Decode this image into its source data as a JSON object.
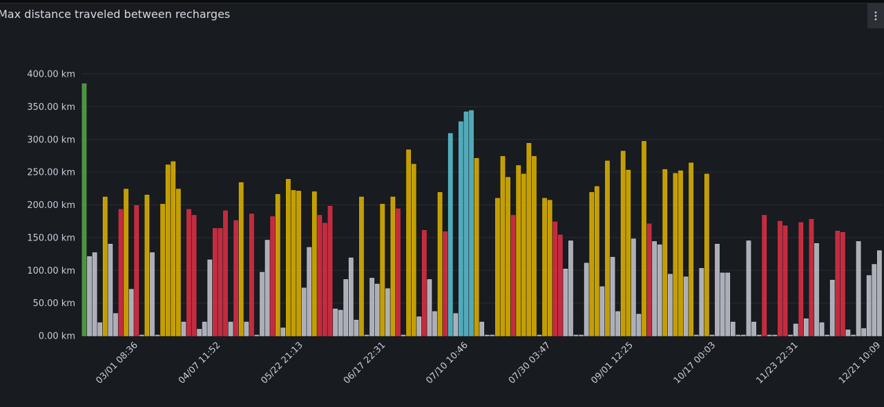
{
  "panel": {
    "title": "Max distance traveled between recharges",
    "menu_icon": "more-vertical-icon"
  },
  "chart_data": {
    "type": "bar",
    "title": "Max distance traveled between recharges",
    "xlabel": "",
    "ylabel": "",
    "unit": "km",
    "ylim": [
      0,
      400
    ],
    "y_ticks": [
      "0.00 km",
      "50.00 km",
      "100.00 km",
      "150.00 km",
      "200.00 km",
      "250.00 km",
      "300.00 km",
      "350.00 km",
      "400.00 km"
    ],
    "x_tick_labels": [
      "03/01 08:36",
      "04/07 11:52",
      "05/22 21:13",
      "06/17 22:31",
      "07/10 10:46",
      "07/30 03:47",
      "09/01 12:25",
      "10/17 00:03",
      "11/23 22:31",
      "12/21 10:09"
    ],
    "grid": true,
    "legend": "none",
    "threshold_colors": {
      "green": "#56a64b",
      "gray": "#c7c8d2",
      "red": "#e02f44",
      "yellow": "#e0b400",
      "blue": "#5ac2d4"
    },
    "values": [
      385,
      121,
      127,
      20,
      212,
      140,
      34,
      193,
      224,
      71,
      199,
      0,
      215,
      127,
      0,
      201,
      261,
      266,
      224,
      21,
      193,
      184,
      10,
      21,
      116,
      164,
      164,
      191,
      21,
      176,
      234,
      21,
      186,
      0,
      97,
      146,
      182,
      216,
      12,
      239,
      222,
      221,
      73,
      135,
      220,
      184,
      172,
      198,
      41,
      39,
      86,
      119,
      24,
      212,
      0,
      88,
      79,
      201,
      72,
      212,
      194,
      0,
      284,
      262,
      29,
      161,
      86,
      37,
      219,
      159,
      309,
      34,
      327,
      342,
      344,
      271,
      21,
      0,
      0,
      210,
      274,
      242,
      184,
      260,
      247,
      294,
      274,
      0,
      210,
      207,
      174,
      154,
      102,
      145,
      0,
      0,
      111,
      219,
      228,
      75,
      267,
      120,
      37,
      282,
      253,
      148,
      33,
      297,
      171,
      144,
      139,
      254,
      94,
      248,
      252,
      90,
      264,
      0,
      103,
      247,
      0,
      140,
      96,
      96,
      21,
      0,
      0,
      145,
      21,
      0,
      184,
      0,
      0,
      175,
      168,
      0,
      18,
      173,
      26,
      178,
      141,
      20,
      0,
      85,
      160,
      158,
      9,
      0,
      144,
      11,
      92,
      109,
      130
    ]
  }
}
